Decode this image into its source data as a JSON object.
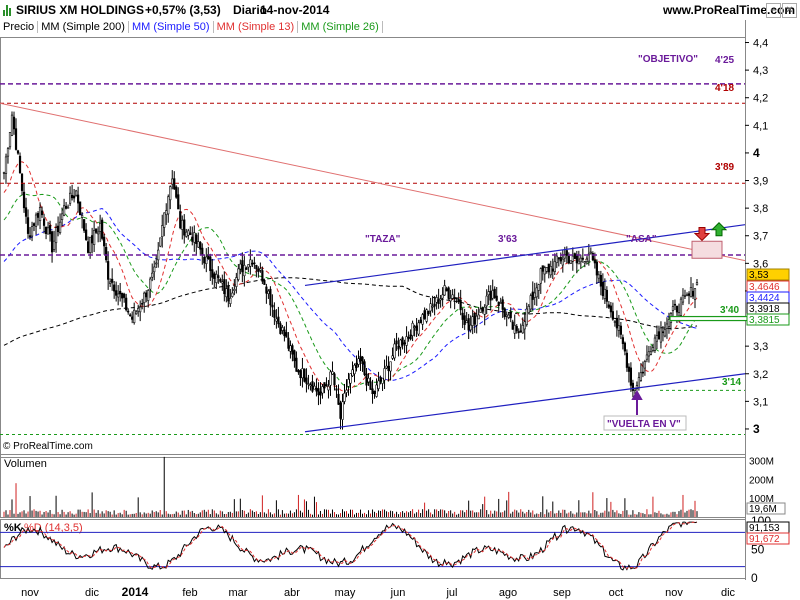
{
  "header": {
    "symbol": "SIRIUS XM HOLDINGS",
    "change": "+0,57% (3,53)",
    "period": "Diario",
    "date": "14-nov-2014",
    "site": "www.ProRealTime.com"
  },
  "legend": {
    "price": "Precio",
    "mm200": "MM (Simple 200)",
    "mm50": "MM (Simple 50)",
    "mm13": "MM (Simple 13)",
    "mm26": "MM (Simple 26)"
  },
  "colors": {
    "mm200": "#000000",
    "mm50": "#1a1aff",
    "mm13": "#e03030",
    "mm26": "#1a9a1a",
    "up": "#000000",
    "down": "#000000",
    "level": "#b00000",
    "target": "#6a1a9a",
    "trendline": "#2020c0",
    "resistance": "#e07070"
  },
  "copyright": "© ProRealTime.com",
  "panels": {
    "volume_label": "Volumen",
    "stoch_label": "%K",
    "stoch_sub": "%D (14,3,5)"
  },
  "annotations": {
    "objetivo": "\"OBJETIVO\"",
    "taza": "\"TAZA\"",
    "asa": "\"ASA\"",
    "vuelta": "\"VUELTA EN V\"",
    "lvl_425": "4'25",
    "lvl_418": "4'18",
    "lvl_389": "3'89",
    "lvl_363": "3'63",
    "lvl_340": "3'40",
    "lvl_314": "3'14"
  },
  "chart_data": [
    {
      "type": "candlestick",
      "title": "SIRIUS XM HOLDINGS",
      "x_tick_labels": [
        "nov",
        "dic",
        "2014",
        "feb",
        "mar",
        "abr",
        "may",
        "jun",
        "jul",
        "ago",
        "sep",
        "oct",
        "nov",
        "dic"
      ],
      "y_tick_labels": [
        "4,4",
        "4,3",
        "4,2",
        "4,1",
        "4",
        "3,9",
        "3,8",
        "3,7",
        "3,6",
        "3,5",
        "3,4",
        "3,3",
        "3,2",
        "3,1",
        "3"
      ],
      "ylim": [
        2.96,
        4.42
      ],
      "price_tags": [
        {
          "label": "3,53",
          "value": 3.53
        },
        {
          "label": "3,4646",
          "value": 3.4646
        },
        {
          "label": "3,4424",
          "value": 3.4424
        },
        {
          "label": "3,3918",
          "value": 3.3918
        },
        {
          "label": "3,3815",
          "value": 3.3815
        }
      ],
      "horizontal_levels": [
        {
          "label": "4'25",
          "value": 4.25
        },
        {
          "label": "4'18",
          "value": 4.18
        },
        {
          "label": "3'89",
          "value": 3.89
        },
        {
          "label": "3'63",
          "value": 3.63
        },
        {
          "label": "3'40",
          "value": 3.4
        },
        {
          "label": "3'14",
          "value": 3.14
        }
      ],
      "close_path": [
        [
          0,
          3.93
        ],
        [
          4,
          4.14
        ],
        [
          7,
          3.98
        ],
        [
          12,
          3.7
        ],
        [
          18,
          3.8
        ],
        [
          24,
          3.66
        ],
        [
          30,
          3.8
        ],
        [
          36,
          3.86
        ],
        [
          42,
          3.66
        ],
        [
          48,
          3.74
        ],
        [
          52,
          3.56
        ],
        [
          58,
          3.48
        ],
        [
          64,
          3.4
        ],
        [
          70,
          3.48
        ],
        [
          76,
          3.58
        ],
        [
          80,
          3.78
        ],
        [
          84,
          3.92
        ],
        [
          88,
          3.74
        ],
        [
          94,
          3.7
        ],
        [
          100,
          3.62
        ],
        [
          106,
          3.55
        ],
        [
          112,
          3.48
        ],
        [
          118,
          3.58
        ],
        [
          124,
          3.62
        ],
        [
          130,
          3.54
        ],
        [
          136,
          3.4
        ],
        [
          140,
          3.34
        ],
        [
          146,
          3.22
        ],
        [
          152,
          3.18
        ],
        [
          158,
          3.12
        ],
        [
          164,
          3.2
        ],
        [
          168,
          3.04
        ],
        [
          172,
          3.18
        ],
        [
          178,
          3.24
        ],
        [
          184,
          3.12
        ],
        [
          190,
          3.2
        ],
        [
          196,
          3.3
        ],
        [
          202,
          3.34
        ],
        [
          208,
          3.4
        ],
        [
          214,
          3.44
        ],
        [
          220,
          3.5
        ],
        [
          226,
          3.48
        ],
        [
          232,
          3.36
        ],
        [
          238,
          3.44
        ],
        [
          244,
          3.5
        ],
        [
          250,
          3.42
        ],
        [
          256,
          3.34
        ],
        [
          262,
          3.44
        ],
        [
          268,
          3.56
        ],
        [
          274,
          3.59
        ],
        [
          280,
          3.63
        ],
        [
          286,
          3.6
        ],
        [
          292,
          3.64
        ],
        [
          298,
          3.52
        ],
        [
          304,
          3.42
        ],
        [
          310,
          3.28
        ],
        [
          314,
          3.14
        ],
        [
          318,
          3.2
        ],
        [
          324,
          3.32
        ],
        [
          330,
          3.38
        ],
        [
          336,
          3.44
        ],
        [
          342,
          3.48
        ],
        [
          346,
          3.53
        ]
      ]
    },
    {
      "type": "bar",
      "title": "Volumen",
      "y_tick_labels": [
        "300M",
        "200M",
        "100M"
      ],
      "ylim": [
        0,
        330
      ],
      "last_value_label": "19,6M"
    },
    {
      "type": "line",
      "title": "%K",
      "subtitle": "%D (14,3,5)",
      "y_tick_labels": [
        "100",
        "50",
        "0"
      ],
      "ylim": [
        0,
        100
      ],
      "value_labels": [
        "91,153",
        "91,672"
      ]
    }
  ]
}
